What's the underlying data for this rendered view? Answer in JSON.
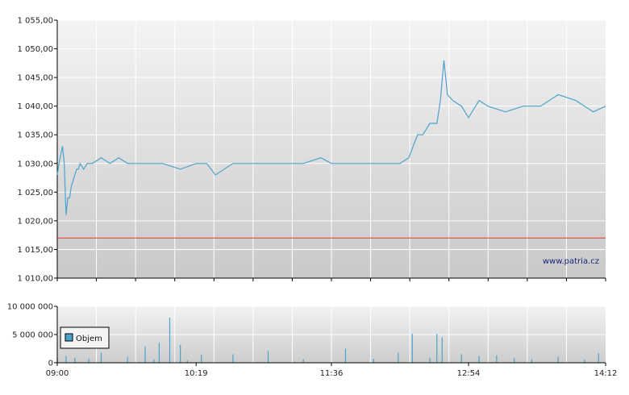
{
  "chart_data": [
    {
      "type": "line",
      "title": "",
      "xlabel": "",
      "ylabel": "",
      "ylim": [
        1010,
        1055
      ],
      "y_tick_labels": [
        "1 010,00",
        "1 015,00",
        "1 020,00",
        "1 025,00",
        "1 030,00",
        "1 035,00",
        "1 040,00",
        "1 045,00",
        "1 050,00",
        "1 055,00"
      ],
      "x_tick_labels": [
        "09:00",
        "10:19",
        "11:36",
        "12:54",
        "14:12"
      ],
      "grid": true,
      "watermark": "www.patria.cz",
      "reference_line": 1017,
      "series": [
        {
          "color": "#4aa3cc",
          "x": [
            "09:00",
            "09:01",
            "09:03",
            "09:04",
            "09:05",
            "09:06",
            "09:07",
            "09:08",
            "09:10",
            "09:11",
            "09:12",
            "09:13",
            "09:15",
            "09:17",
            "09:20",
            "09:25",
            "09:30",
            "09:35",
            "09:40",
            "09:45",
            "09:50",
            "10:00",
            "10:10",
            "10:19",
            "10:25",
            "10:30",
            "10:40",
            "10:50",
            "11:00",
            "11:10",
            "11:20",
            "11:30",
            "11:36",
            "11:45",
            "11:55",
            "12:05",
            "12:15",
            "12:20",
            "12:25",
            "12:28",
            "12:32",
            "12:36",
            "12:38",
            "12:40",
            "12:42",
            "12:45",
            "12:50",
            "12:54",
            "13:00",
            "13:05",
            "13:15",
            "13:25",
            "13:35",
            "13:45",
            "13:55",
            "14:05",
            "14:12"
          ],
          "y": [
            1028,
            1030,
            1033,
            1030,
            1021,
            1024,
            1024,
            1026,
            1028,
            1029,
            1029,
            1030,
            1029,
            1030,
            1030,
            1031,
            1030,
            1031,
            1030,
            1030,
            1030,
            1030,
            1029,
            1030,
            1030,
            1028,
            1030,
            1030,
            1030,
            1030,
            1030,
            1031,
            1030,
            1030,
            1030,
            1030,
            1030,
            1031,
            1035,
            1035,
            1037,
            1037,
            1041,
            1048,
            1042,
            1041,
            1040,
            1038,
            1041,
            1040,
            1039,
            1040,
            1040,
            1042,
            1041,
            1039,
            1040
          ]
        }
      ]
    },
    {
      "type": "bar",
      "title": "",
      "ylim": [
        0,
        10000000
      ],
      "y_tick_labels": [
        "0",
        "5 000 000",
        "10 000 000"
      ],
      "legend": "Objem",
      "legend_position": "top-left",
      "series": [
        {
          "name": "Objem",
          "color": "#4aa3cc",
          "x": [
            "09:00",
            "09:05",
            "09:10",
            "09:18",
            "09:25",
            "09:40",
            "09:50",
            "09:55",
            "09:58",
            "10:04",
            "10:10",
            "10:14",
            "10:22",
            "10:40",
            "11:00",
            "11:20",
            "11:44",
            "12:00",
            "12:14",
            "12:22",
            "12:32",
            "12:36",
            "12:39",
            "12:50",
            "13:00",
            "13:10",
            "13:20",
            "13:30",
            "13:45",
            "14:00",
            "14:08"
          ],
          "values": [
            800000,
            1200000,
            900000,
            700000,
            1800000,
            1100000,
            2900000,
            600000,
            3600000,
            8000000,
            3200000,
            400000,
            1400000,
            1500000,
            2100000,
            600000,
            2500000,
            700000,
            1800000,
            5100000,
            900000,
            5100000,
            4500000,
            1500000,
            1200000,
            1300000,
            800000,
            600000,
            1100000,
            600000,
            1700000
          ]
        }
      ]
    }
  ]
}
